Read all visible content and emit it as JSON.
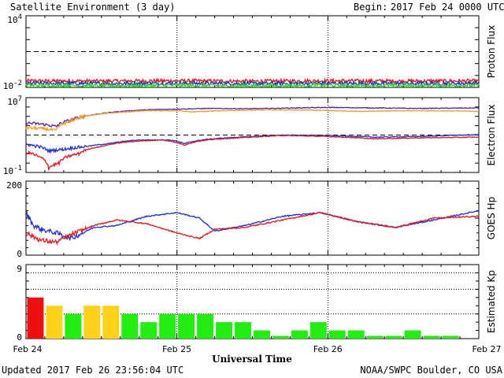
{
  "header": {
    "title": "Satellite Environment (3 day)",
    "begin_label": "Begin:",
    "begin_value": "2017 Feb 24 0000 UTC"
  },
  "footer": {
    "updated": "Updated 2017 Feb 26 23:56:04 UTC",
    "credit": "NOAA/SWPC Boulder, CO USA"
  },
  "xaxis": {
    "title": "Universal Time",
    "labels": [
      "Feb 24",
      "Feb 25",
      "Feb 26",
      "Feb 27"
    ]
  },
  "colors": {
    "red": "#e8141e",
    "blue": "#1f2fd6",
    "green": "#22e01a",
    "orange": "#f0a020",
    "purple": "#5a1fb0",
    "kp_red": "#ee1010",
    "kp_yellow": "#ffd21a",
    "kp_green": "#22ee11"
  },
  "chart_data": [
    {
      "type": "line",
      "title": "Proton Flux",
      "ylabel": "Proton Flux",
      "yscale": "log",
      "ylim": [
        0.01,
        10000
      ],
      "yticks": [
        {
          "base": "10",
          "exp": "4"
        },
        {
          "base": "10",
          "exp": "-2"
        }
      ],
      "threshold": 10,
      "series": [
        {
          "color": "red",
          "x_days": [
            0,
            0.5,
            1,
            1.5,
            2,
            2.5,
            3
          ],
          "values": [
            0.035,
            0.034,
            0.036,
            0.033,
            0.036,
            0.034,
            0.035
          ]
        },
        {
          "color": "blue",
          "x_days": [
            0,
            0.5,
            1,
            1.5,
            2,
            2.5,
            3
          ],
          "values": [
            0.022,
            0.021,
            0.022,
            0.021,
            0.022,
            0.021,
            0.022
          ]
        },
        {
          "color": "green",
          "x_days": [
            0,
            0.5,
            1,
            1.5,
            2,
            2.5,
            3
          ],
          "values": [
            0.015,
            0.014,
            0.015,
            0.014,
            0.015,
            0.014,
            0.015
          ]
        }
      ]
    },
    {
      "type": "line",
      "title": "Electron Flux",
      "ylabel": "Electron Flux",
      "yscale": "log",
      "ylim": [
        0.1,
        10000000
      ],
      "yticks": [
        {
          "base": "10",
          "exp": "7"
        },
        {
          "base": "10",
          "exp": "-1"
        }
      ],
      "threshold": 1000,
      "series": [
        {
          "color": "purple",
          "x_days": [
            0,
            0.1,
            0.2,
            0.3,
            0.45,
            0.6,
            0.8,
            1.0,
            1.2,
            1.5,
            1.8,
            2.0,
            2.3,
            2.6,
            3.0
          ],
          "values": [
            20000,
            15000,
            8000,
            40000,
            150000,
            300000,
            500000,
            600000,
            700000,
            650000,
            800000,
            900000,
            800000,
            700000,
            800000
          ]
        },
        {
          "color": "orange",
          "x_days": [
            0,
            0.1,
            0.2,
            0.3,
            0.45,
            0.6,
            0.8,
            1.0,
            1.1,
            1.3,
            1.6,
            1.9,
            2.2,
            2.6,
            3.0
          ],
          "values": [
            6000,
            5000,
            3000,
            30000,
            150000,
            250000,
            400000,
            400000,
            300000,
            400000,
            500000,
            450000,
            350000,
            400000,
            350000
          ]
        },
        {
          "color": "blue",
          "x_days": [
            0,
            0.1,
            0.15,
            0.25,
            0.4,
            0.55,
            0.75,
            0.95,
            1.05,
            1.2,
            1.5,
            1.7,
            2.0,
            2.3,
            2.6,
            3.0
          ],
          "values": [
            100,
            50,
            20,
            30,
            60,
            120,
            300,
            300,
            120,
            350,
            700,
            1000,
            900,
            600,
            700,
            1100
          ]
        },
        {
          "color": "red",
          "x_days": [
            0,
            0.08,
            0.15,
            0.22,
            0.35,
            0.5,
            0.7,
            0.9,
            1.05,
            1.2,
            1.5,
            1.7,
            2.0,
            2.3,
            2.6,
            3.0
          ],
          "values": [
            15,
            5,
            0.3,
            1,
            10,
            60,
            200,
            300,
            80,
            300,
            600,
            900,
            700,
            400,
            500,
            600
          ]
        }
      ]
    },
    {
      "type": "line",
      "title": "GOES Hp",
      "ylabel": "GOES Hp",
      "ylim": [
        0,
        200
      ],
      "yticks": [
        "200",
        "0"
      ],
      "series": [
        {
          "color": "blue",
          "x_days": [
            0,
            0.05,
            0.1,
            0.2,
            0.3,
            0.45,
            0.6,
            0.8,
            1.0,
            1.15,
            1.25,
            1.45,
            1.7,
            1.95,
            2.2,
            2.45,
            2.7,
            3.0
          ],
          "values": [
            115,
            80,
            70,
            60,
            45,
            75,
            80,
            105,
            115,
            100,
            65,
            80,
            105,
            115,
            90,
            75,
            95,
            120
          ]
        },
        {
          "color": "red",
          "x_days": [
            0,
            0.05,
            0.1,
            0.2,
            0.3,
            0.45,
            0.6,
            0.8,
            1.0,
            1.15,
            1.25,
            1.45,
            1.7,
            1.95,
            2.2,
            2.45,
            2.7,
            3.0
          ],
          "values": [
            60,
            50,
            40,
            35,
            55,
            80,
            95,
            85,
            60,
            45,
            70,
            75,
            95,
            115,
            90,
            75,
            100,
            105
          ]
        }
      ]
    },
    {
      "type": "bar",
      "title": "Estimated Kp",
      "ylabel": "Estimated Kp",
      "ylim": [
        0,
        9
      ],
      "yticks": [
        "9",
        "0"
      ],
      "bar_width_hours": 3,
      "values": [
        5,
        4,
        3,
        4,
        4,
        3,
        2,
        3,
        3,
        3,
        2,
        2,
        1,
        0.33,
        1,
        2,
        1,
        1,
        0.33,
        0.33,
        1,
        0.33,
        0.33,
        0
      ],
      "colors": [
        "kp_red",
        "kp_yellow",
        "kp_green",
        "kp_yellow",
        "kp_yellow",
        "kp_green",
        "kp_green",
        "kp_green",
        "kp_green",
        "kp_green",
        "kp_green",
        "kp_green",
        "kp_green",
        "kp_green",
        "kp_green",
        "kp_green",
        "kp_green",
        "kp_green",
        "kp_green",
        "kp_green",
        "kp_green",
        "kp_green",
        "kp_green",
        "kp_green"
      ]
    }
  ]
}
